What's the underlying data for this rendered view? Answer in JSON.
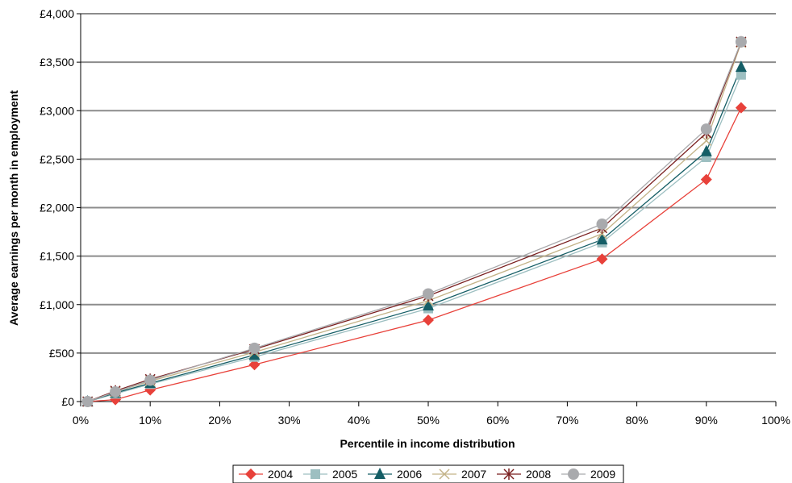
{
  "chart_data": {
    "type": "line",
    "title": "",
    "xlabel": "Percentile in income distribution",
    "ylabel": "Average earnings per month in employment",
    "x": [
      1,
      5,
      10,
      25,
      50,
      75,
      90,
      95
    ],
    "xlim": [
      0,
      100
    ],
    "ylim": [
      0,
      4000
    ],
    "x_ticks": [
      0,
      10,
      20,
      30,
      40,
      50,
      60,
      70,
      80,
      90,
      100
    ],
    "x_tick_labels": [
      "0%",
      "10%",
      "20%",
      "30%",
      "40%",
      "50%",
      "60%",
      "70%",
      "80%",
      "90%",
      "100%"
    ],
    "y_ticks": [
      0,
      500,
      1000,
      1500,
      2000,
      2500,
      3000,
      3500,
      4000
    ],
    "y_tick_labels": [
      "£0",
      "£500",
      "£1,000",
      "£1,500",
      "£2,000",
      "£2,500",
      "£3,000",
      "£3,500",
      "£4,000"
    ],
    "grid": "horizontal",
    "legend_position": "bottom",
    "series": [
      {
        "name": "2004",
        "color": "#e8413a",
        "marker": "diamond",
        "values": [
          0,
          20,
          120,
          380,
          840,
          1470,
          2290,
          3030
        ]
      },
      {
        "name": "2005",
        "color": "#9dbfc1",
        "marker": "square",
        "values": [
          0,
          80,
          180,
          460,
          960,
          1640,
          2520,
          3370
        ]
      },
      {
        "name": "2006",
        "color": "#155e66",
        "marker": "triangle",
        "values": [
          0,
          90,
          190,
          480,
          990,
          1670,
          2580,
          3450
        ]
      },
      {
        "name": "2007",
        "color": "#c3b388",
        "marker": "x",
        "values": [
          0,
          100,
          210,
          510,
          1040,
          1730,
          2690,
          3700
        ]
      },
      {
        "name": "2008",
        "color": "#7a1f1f",
        "marker": "star",
        "values": [
          0,
          110,
          230,
          540,
          1090,
          1790,
          2770,
          3710
        ]
      },
      {
        "name": "2009",
        "color": "#a9aaad",
        "marker": "circle",
        "values": [
          0,
          100,
          220,
          550,
          1110,
          1830,
          2810,
          3710
        ]
      }
    ]
  }
}
